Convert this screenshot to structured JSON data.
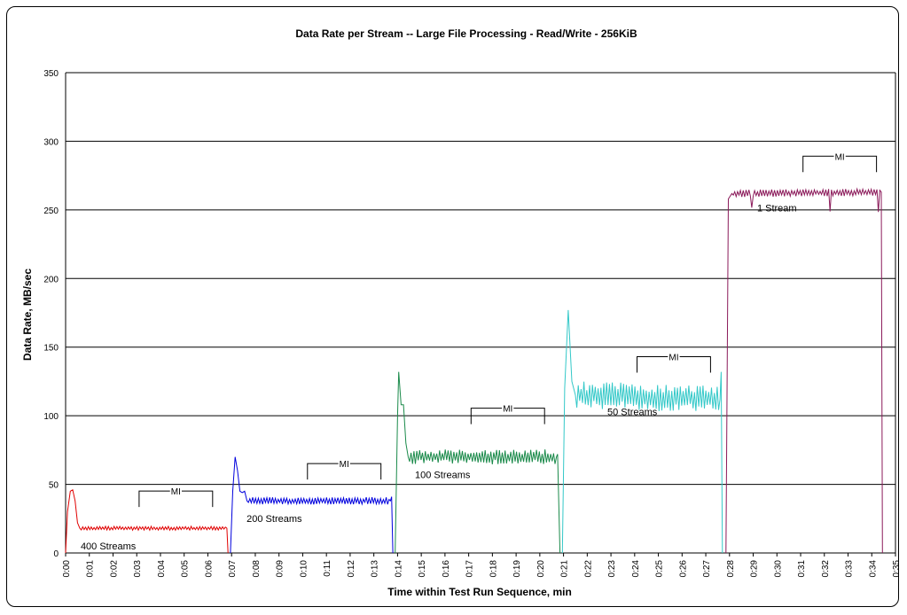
{
  "chart_data": {
    "type": "line",
    "title": "Data Rate per Stream -- Large File Processing - Read/Write - 256KiB",
    "xlabel": "Time within Test Run Sequence, min",
    "ylabel": "Data Rate, MB/sec",
    "ylim": [
      0,
      350
    ],
    "yticks": [
      0,
      50,
      100,
      150,
      200,
      250,
      300,
      350
    ],
    "xlim": [
      0,
      35
    ],
    "xtick_labels": [
      "0:00",
      "0:01",
      "0:02",
      "0:03",
      "0:04",
      "0:05",
      "0:06",
      "0:07",
      "0:08",
      "0:09",
      "0:10",
      "0:11",
      "0:12",
      "0:13",
      "0:14",
      "0:15",
      "0:16",
      "0:17",
      "0:18",
      "0:19",
      "0:20",
      "0:21",
      "0:22",
      "0:23",
      "0:24",
      "0:25",
      "0:26",
      "0:27",
      "0:28",
      "0:29",
      "0:30",
      "0:31",
      "0:32",
      "0:33",
      "0:34",
      "0:35"
    ],
    "grid": "horizontal",
    "legend": "none",
    "series": [
      {
        "name": "400 Streams",
        "color": "#e00000",
        "label_x": 0.3,
        "mi": [
          3.1,
          6.2
        ],
        "points": [
          [
            0,
            0
          ],
          [
            0.08,
            30
          ],
          [
            0.2,
            45
          ],
          [
            0.3,
            46
          ],
          [
            0.4,
            38
          ],
          [
            0.5,
            22
          ],
          [
            0.6,
            18
          ],
          [
            6.8,
            18
          ],
          [
            6.85,
            0
          ]
        ]
      },
      {
        "name": "200 Streams",
        "color": "#0000dd",
        "label_x": 7.3,
        "mi": [
          10.2,
          13.3
        ],
        "points": [
          [
            6.95,
            0
          ],
          [
            7.05,
            45
          ],
          [
            7.15,
            70
          ],
          [
            7.25,
            60
          ],
          [
            7.35,
            45
          ],
          [
            7.45,
            44
          ],
          [
            7.55,
            45
          ],
          [
            7.65,
            38
          ],
          [
            13.7,
            38
          ],
          [
            13.75,
            41
          ],
          [
            13.8,
            0
          ]
        ]
      },
      {
        "name": "100 Streams",
        "color": "#1a8a4a",
        "label_x": 14.4,
        "mi": [
          17.1,
          20.2
        ],
        "points": [
          [
            13.9,
            0
          ],
          [
            14.0,
            100
          ],
          [
            14.05,
            132
          ],
          [
            14.15,
            108
          ],
          [
            14.25,
            108
          ],
          [
            14.35,
            80
          ],
          [
            14.45,
            70
          ],
          [
            20.7,
            70
          ],
          [
            20.75,
            72
          ],
          [
            20.85,
            0
          ]
        ]
      },
      {
        "name": "50 Streams",
        "color": "#33c8c8",
        "label_x": 22.4,
        "mi": [
          24.1,
          27.2
        ],
        "points": [
          [
            20.95,
            0
          ],
          [
            21.05,
            120
          ],
          [
            21.2,
            177
          ],
          [
            21.35,
            125
          ],
          [
            21.5,
            115
          ],
          [
            27.6,
            112
          ],
          [
            27.65,
            132
          ],
          [
            27.7,
            0
          ]
        ]
      },
      {
        "name": "1 Stream",
        "color": "#8b1a5a",
        "label_x": 28.5,
        "mi": [
          31.1,
          34.2
        ],
        "points": [
          [
            27.85,
            0
          ],
          [
            27.95,
            258
          ],
          [
            28.1,
            262
          ],
          [
            34.4,
            263
          ],
          [
            34.45,
            0
          ]
        ]
      }
    ],
    "annotations": [
      "MI",
      "MI",
      "MI",
      "MI",
      "MI"
    ]
  }
}
